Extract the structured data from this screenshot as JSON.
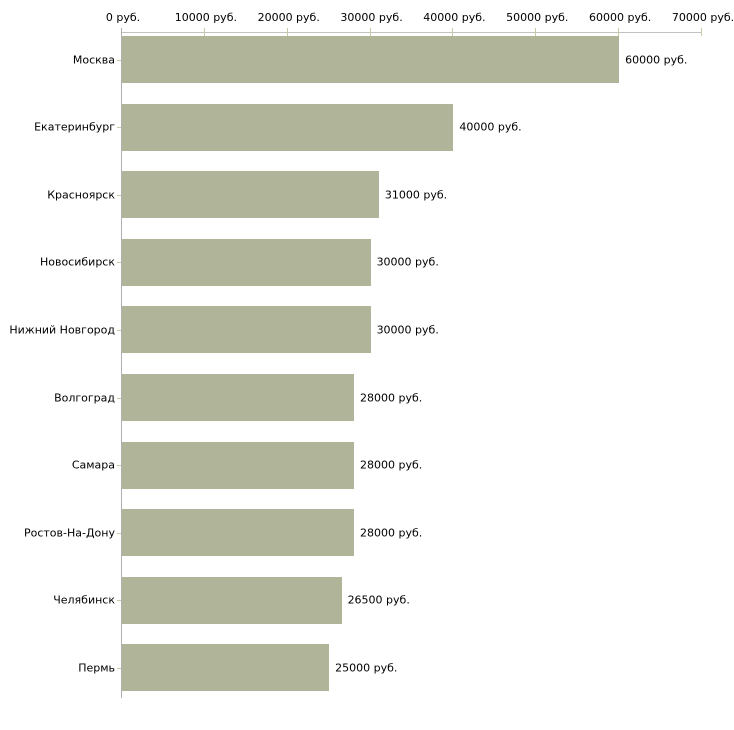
{
  "chart_data": {
    "type": "bar",
    "orientation": "horizontal",
    "title": "",
    "categories": [
      "Москва",
      "Екатеринбург",
      "Красноярск",
      "Новосибирск",
      "Нижний Новгород",
      "Волгоград",
      "Самара",
      "Ростов-На-Дону",
      "Челябинск",
      "Пермь"
    ],
    "values": [
      60000,
      40000,
      31000,
      30000,
      30000,
      28000,
      28000,
      28000,
      26500,
      25000
    ],
    "value_labels": [
      "60000 руб.",
      "40000 руб.",
      "31000 руб.",
      "30000 руб.",
      "30000 руб.",
      "28000 руб.",
      "28000 руб.",
      "28000 руб.",
      "26500 руб.",
      "25000 руб."
    ],
    "x_axis": {
      "position": "top",
      "range": [
        0,
        70000
      ],
      "ticks": [
        0,
        10000,
        20000,
        30000,
        40000,
        50000,
        60000,
        70000
      ],
      "tick_labels": [
        "0 руб.",
        "10000 руб.",
        "20000 руб.",
        "30000 руб.",
        "40000 руб.",
        "50000 руб.",
        "60000 руб.",
        "70000 руб."
      ]
    },
    "grid": false,
    "legend_position": "none",
    "colors": {
      "bar": "#b0b59a",
      "x_axis_line": "#c2c2c2",
      "y_axis_line": "#b0b0b0",
      "tick": "#c9caa5",
      "text": "#000000",
      "background": "#ffffff"
    }
  }
}
